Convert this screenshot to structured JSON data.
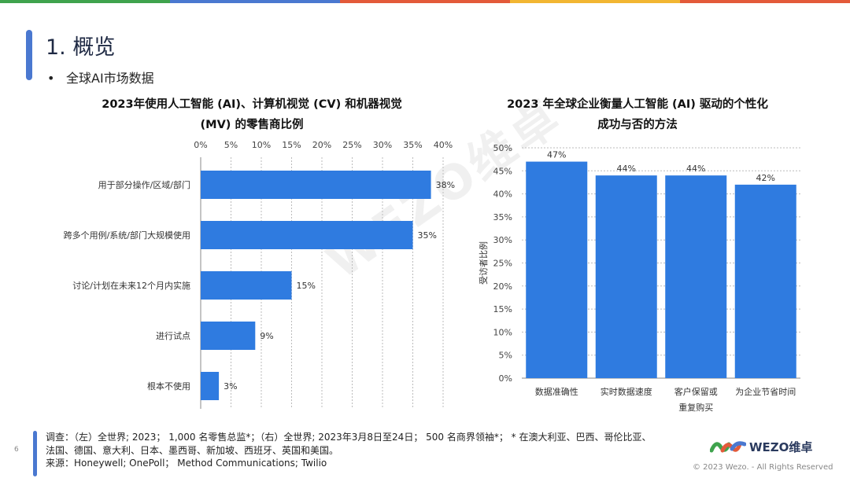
{
  "brand_colors": [
    "#3fa34d",
    "#4a78d0",
    "#e35a3a",
    "#f2b632",
    "#e35a3a"
  ],
  "bar_color": "#2f7be0",
  "page": {
    "title": "1. 概览",
    "bullet_marker": "•",
    "bullet": "全球AI市场数据",
    "page_number": "6"
  },
  "watermark": "WEZO维卓",
  "chart_data": [
    {
      "type": "bar",
      "orientation": "horizontal",
      "title_line1": "2023年使用人工智能 (AI)、计算机视觉 (CV) 和机器视觉",
      "title_line2": "(MV) 的零售商比例",
      "categories": [
        "用于部分操作/区域/部门",
        "跨多个用例/系统/部门大规模使用",
        "讨论/计划在未来12个月内实施",
        "进行试点",
        "根本不使用"
      ],
      "values": [
        38,
        35,
        15,
        9,
        3
      ],
      "value_labels": [
        "38%",
        "35%",
        "15%",
        "9%",
        "3%"
      ],
      "xlim": [
        0,
        40
      ],
      "xticks": [
        "0%",
        "5%",
        "10%",
        "15%",
        "20%",
        "25%",
        "30%",
        "35%",
        "40%"
      ],
      "axis_position": "top",
      "grid": true
    },
    {
      "type": "bar",
      "orientation": "vertical",
      "title_line1": "2023 年全球企业衡量人工智能 (AI) 驱动的个性化",
      "title_line2": "成功与否的方法",
      "categories": [
        [
          "数据准确性"
        ],
        [
          "实时数据速度"
        ],
        [
          "客户保留或",
          "重复购买"
        ],
        [
          "为企业节省时间"
        ]
      ],
      "values": [
        47,
        44,
        44,
        42
      ],
      "value_labels": [
        "47%",
        "44%",
        "44%",
        "42%"
      ],
      "ylim": [
        0,
        50
      ],
      "yticks": [
        "0%",
        "5%",
        "10%",
        "15%",
        "20%",
        "25%",
        "30%",
        "35%",
        "40%",
        "45%",
        "50%"
      ],
      "ylabel": "受访者比例",
      "grid": true
    }
  ],
  "footer": {
    "line1": "调查：（左）全世界; 2023； 1,000 名零售总监*；（右）全世界; 2023年3月8日至24日； 500 名商界领袖*； * 在澳大利亚、巴西、哥伦比亚、",
    "line2": "法国、德国、意大利、日本、墨西哥、新加坡、西班牙、英国和美国。",
    "line3": "来源：Honeywell; OnePoll； Method Communications; Twilio",
    "logo_text": "WEZO维卓",
    "copyright": "© 2023 Wezo. - All Rights Reserved"
  }
}
